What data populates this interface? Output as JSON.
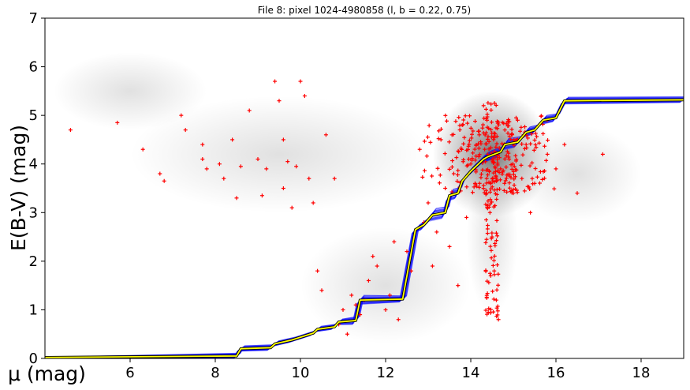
{
  "chart_data": {
    "type": "line",
    "title": "File 8: pixel 1024-4980858 (l, b = 0.22, 0.75)",
    "xlabel": "μ (mag)",
    "ylabel": "E(B-V) (mag)",
    "xlim": [
      4,
      19
    ],
    "ylim": [
      0,
      7
    ],
    "x_ticks": [
      6,
      8,
      10,
      12,
      14,
      16,
      18
    ],
    "y_ticks": [
      0,
      1,
      2,
      3,
      4,
      5,
      6,
      7
    ],
    "grid": false,
    "legend": "none",
    "colors": {
      "best_fit": "#ffff00",
      "best_fit_edge": "#000000",
      "samples": "#0000ff",
      "stars": "#ff0000",
      "density": "#000000"
    },
    "series": [
      {
        "role": "best-fit",
        "x": [
          4.0,
          8.5,
          8.6,
          9.3,
          9.4,
          9.8,
          10.3,
          10.4,
          10.8,
          10.9,
          11.3,
          11.4,
          12.4,
          12.7,
          12.9,
          13.1,
          13.4,
          13.5,
          13.7,
          13.8,
          13.9,
          14.0,
          14.3,
          14.4,
          14.7,
          14.8,
          15.1,
          15.3,
          15.5,
          15.7,
          16.0,
          16.2,
          19.0
        ],
        "y": [
          0.02,
          0.05,
          0.2,
          0.22,
          0.3,
          0.38,
          0.52,
          0.6,
          0.65,
          0.75,
          0.78,
          1.2,
          1.22,
          2.65,
          2.75,
          2.95,
          3.0,
          3.35,
          3.4,
          3.65,
          3.75,
          3.85,
          4.1,
          4.15,
          4.25,
          4.4,
          4.45,
          4.65,
          4.7,
          4.9,
          4.95,
          5.3,
          5.32
        ]
      }
    ],
    "sample_band": {
      "x": [
        4.0,
        6.0,
        8.0,
        9.0,
        10.0,
        11.0,
        11.5,
        12.5,
        13.0,
        14.0,
        15.0,
        16.0,
        16.5,
        19.0
      ],
      "y_low": [
        0.0,
        0.0,
        0.02,
        0.15,
        0.3,
        0.55,
        0.9,
        1.1,
        2.6,
        3.7,
        4.3,
        5.1,
        5.3,
        5.3
      ],
      "y_high": [
        0.02,
        0.08,
        0.2,
        0.35,
        0.5,
        0.75,
        1.25,
        1.3,
        3.05,
        4.1,
        4.7,
        5.4,
        5.45,
        5.5
      ]
    },
    "stars": [
      [
        4.6,
        4.7
      ],
      [
        5.7,
        4.85
      ],
      [
        6.3,
        4.3
      ],
      [
        6.7,
        3.8
      ],
      [
        6.8,
        3.65
      ],
      [
        7.2,
        5.0
      ],
      [
        7.3,
        4.7
      ],
      [
        7.7,
        4.4
      ],
      [
        7.7,
        4.1
      ],
      [
        7.8,
        3.9
      ],
      [
        8.1,
        4.0
      ],
      [
        8.2,
        3.7
      ],
      [
        8.4,
        4.5
      ],
      [
        8.5,
        3.3
      ],
      [
        8.6,
        3.95
      ],
      [
        8.8,
        5.1
      ],
      [
        9.0,
        4.1
      ],
      [
        9.1,
        3.35
      ],
      [
        9.2,
        3.9
      ],
      [
        9.4,
        5.7
      ],
      [
        9.5,
        5.3
      ],
      [
        9.6,
        4.5
      ],
      [
        9.6,
        3.5
      ],
      [
        9.7,
        4.05
      ],
      [
        9.8,
        3.1
      ],
      [
        9.9,
        3.95
      ],
      [
        10.0,
        5.7
      ],
      [
        10.1,
        5.4
      ],
      [
        10.2,
        3.7
      ],
      [
        10.3,
        3.2
      ],
      [
        10.4,
        1.8
      ],
      [
        10.5,
        1.4
      ],
      [
        10.6,
        4.6
      ],
      [
        10.8,
        3.7
      ],
      [
        10.9,
        0.7
      ],
      [
        11.0,
        1.0
      ],
      [
        11.1,
        0.5
      ],
      [
        11.2,
        1.3
      ],
      [
        11.3,
        1.1
      ],
      [
        11.4,
        0.9
      ],
      [
        11.5,
        1.2
      ],
      [
        11.6,
        1.6
      ],
      [
        11.7,
        2.1
      ],
      [
        11.8,
        1.9
      ],
      [
        12.0,
        1.0
      ],
      [
        12.1,
        1.3
      ],
      [
        12.2,
        2.4
      ],
      [
        12.3,
        0.8
      ],
      [
        12.5,
        2.2
      ],
      [
        12.6,
        1.8
      ],
      [
        12.8,
        4.3
      ],
      [
        12.9,
        2.8
      ],
      [
        13.0,
        3.2
      ],
      [
        13.1,
        1.9
      ],
      [
        13.2,
        2.6
      ],
      [
        13.3,
        4.5
      ],
      [
        13.4,
        3.5
      ],
      [
        13.5,
        2.3
      ],
      [
        13.6,
        3.8
      ],
      [
        13.7,
        1.5
      ],
      [
        13.8,
        4.8
      ],
      [
        13.9,
        2.9
      ],
      [
        14.0,
        4.0
      ],
      [
        14.1,
        3.6
      ],
      [
        14.2,
        4.6
      ],
      [
        14.3,
        5.2
      ],
      [
        14.4,
        4.2
      ],
      [
        14.45,
        3.0
      ],
      [
        14.5,
        2.5
      ],
      [
        14.55,
        1.8
      ],
      [
        14.6,
        1.2
      ],
      [
        14.65,
        0.8
      ],
      [
        14.7,
        3.9
      ],
      [
        14.8,
        4.7
      ],
      [
        14.9,
        4.1
      ],
      [
        15.0,
        3.4
      ],
      [
        15.1,
        4.9
      ],
      [
        15.2,
        3.7
      ],
      [
        15.3,
        4.4
      ],
      [
        15.4,
        3.0
      ],
      [
        15.5,
        3.6
      ],
      [
        15.6,
        4.8
      ],
      [
        15.8,
        4.2
      ],
      [
        16.0,
        3.9
      ],
      [
        16.2,
        4.4
      ],
      [
        16.5,
        3.4
      ],
      [
        17.1,
        4.2
      ]
    ]
  }
}
